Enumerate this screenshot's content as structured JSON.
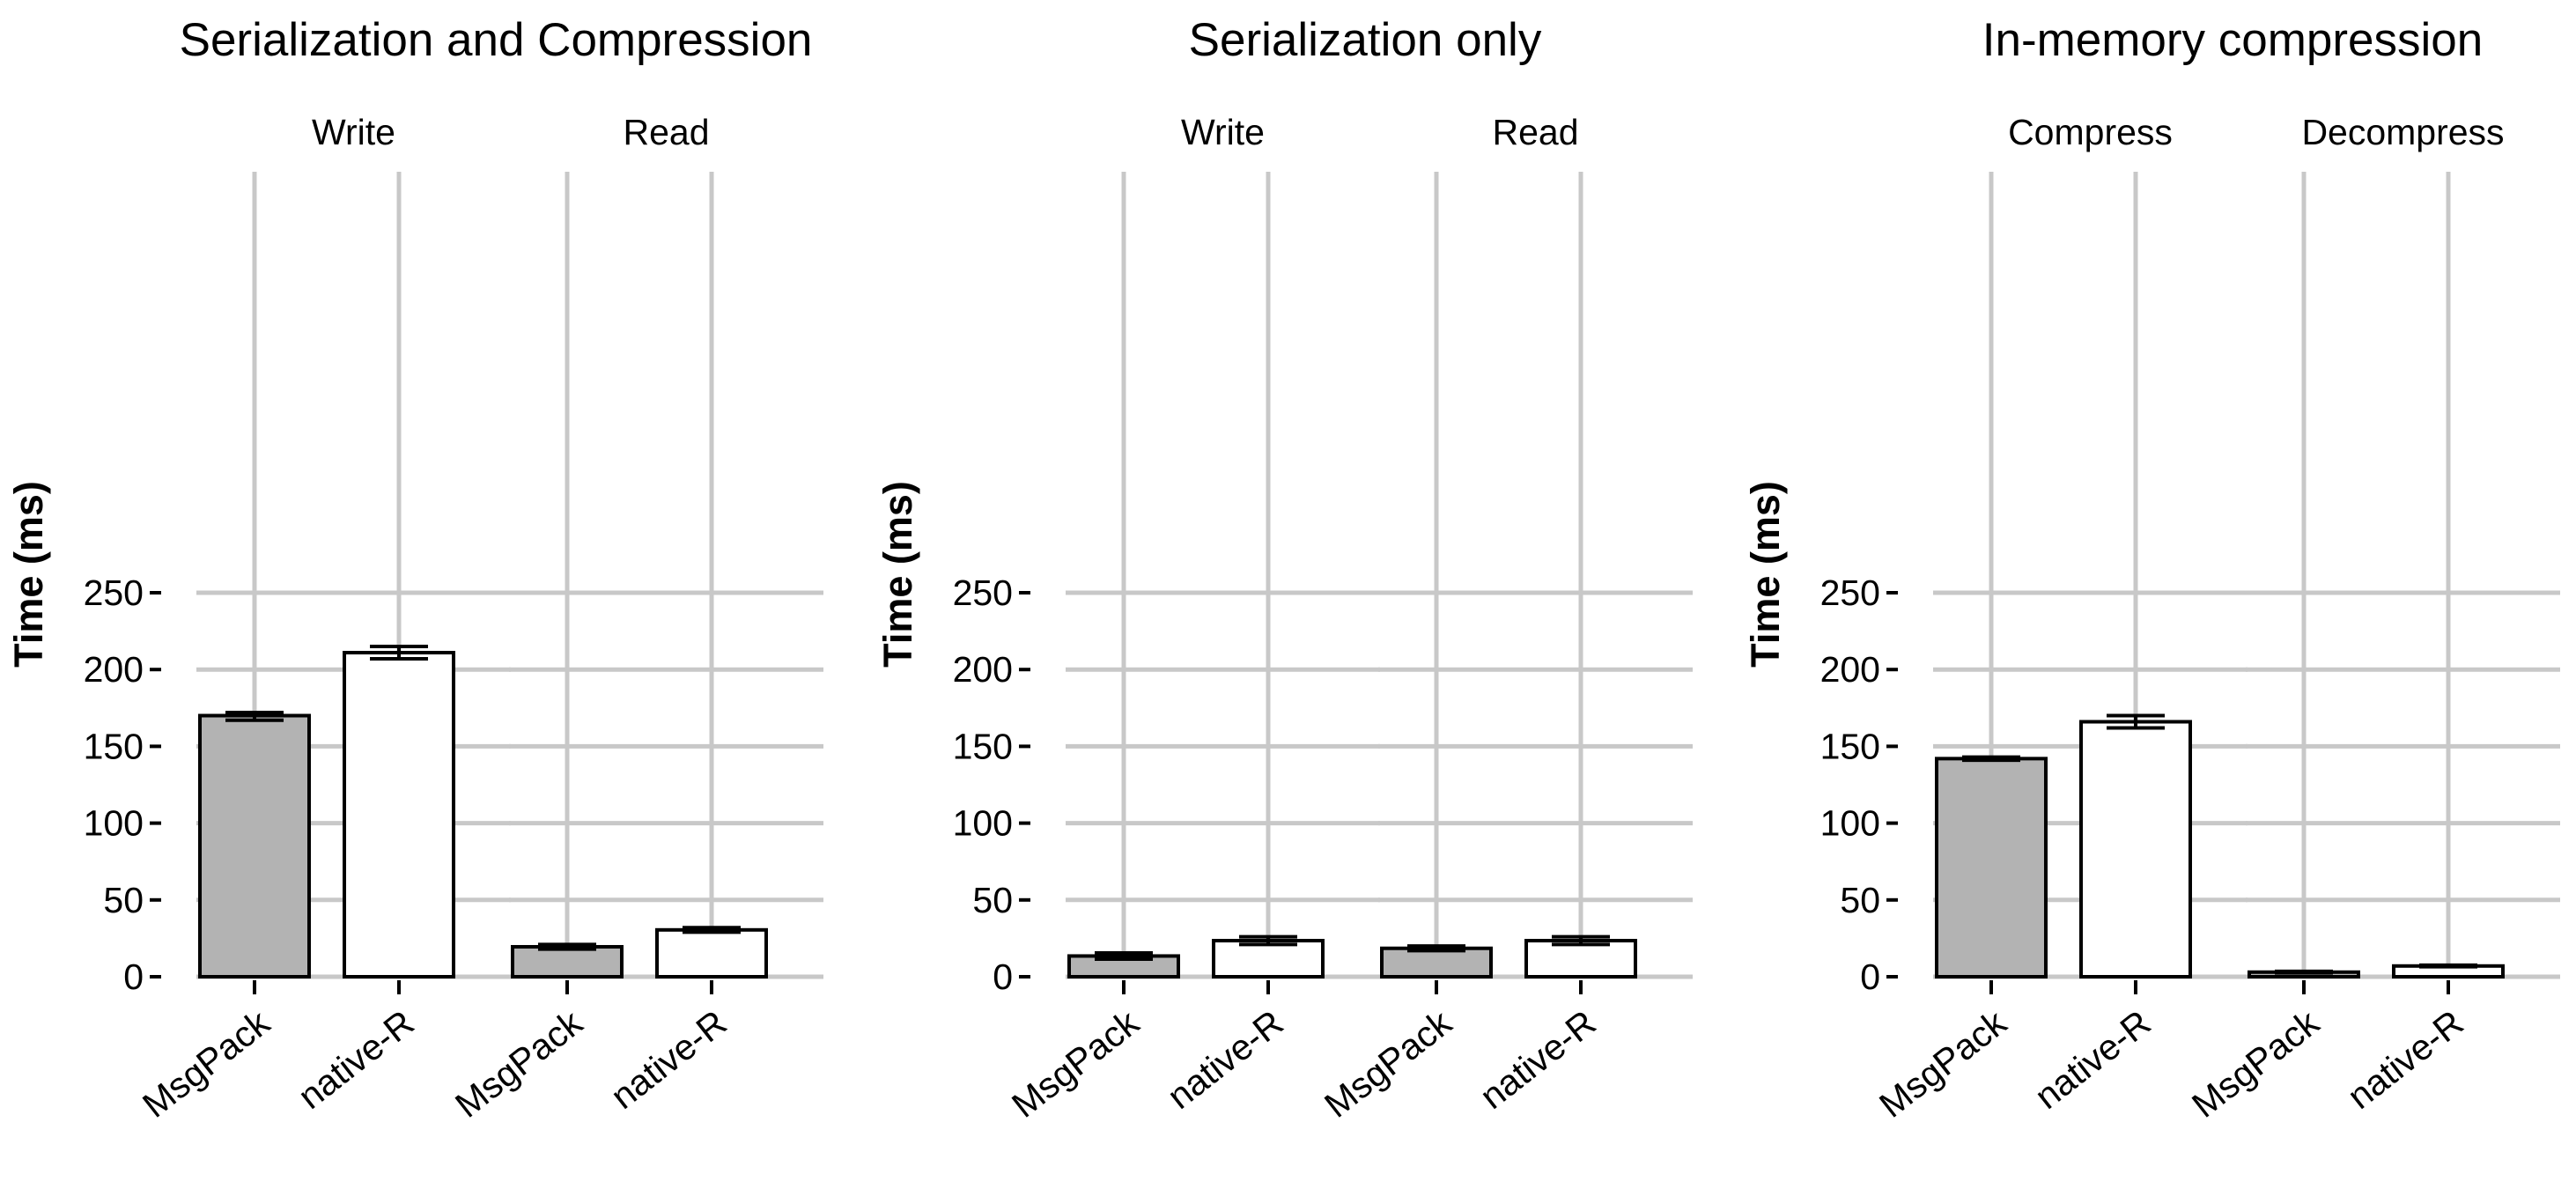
{
  "colors": {
    "MsgPack": "#b3b3b3",
    "native-R": "#ffffff",
    "grid": "#c8c8c8"
  },
  "chart_data": [
    {
      "type": "bar",
      "title": "Serialization and Compression",
      "ylabel": "Time (ms)",
      "ylim": [
        0,
        262
      ],
      "yticks": [
        0,
        50,
        100,
        150,
        200,
        250
      ],
      "categories": [
        "MsgPack",
        "native-R"
      ],
      "facets": [
        {
          "label": "Write",
          "values": [
            170,
            211
          ],
          "errors": [
            [
              167,
              172
            ],
            [
              207,
              215
            ]
          ]
        },
        {
          "label": "Read",
          "values": [
            19.5,
            30.5
          ],
          "errors": [
            [
              18,
              21
            ],
            [
              29,
              32
            ]
          ]
        }
      ]
    },
    {
      "type": "bar",
      "title": "Serialization only",
      "ylabel": "Time (ms)",
      "ylim": [
        0,
        262
      ],
      "yticks": [
        0,
        50,
        100,
        150,
        200,
        250
      ],
      "categories": [
        "MsgPack",
        "native-R"
      ],
      "facets": [
        {
          "label": "Write",
          "values": [
            13.5,
            23.5
          ],
          "errors": [
            [
              11.5,
              15.5
            ],
            [
              21,
              26
            ]
          ]
        },
        {
          "label": "Read",
          "values": [
            18.5,
            23.5
          ],
          "errors": [
            [
              17,
              20
            ],
            [
              21,
              26
            ]
          ]
        }
      ]
    },
    {
      "type": "bar",
      "title": "In-memory compression",
      "ylabel": "Time (ms)",
      "ylim": [
        0,
        262
      ],
      "yticks": [
        0,
        50,
        100,
        150,
        200,
        250
      ],
      "categories": [
        "MsgPack",
        "native-R"
      ],
      "facets": [
        {
          "label": "Compress",
          "values": [
            142,
            166
          ],
          "errors": [
            [
              141,
              143
            ],
            [
              162,
              170
            ]
          ]
        },
        {
          "label": "Decompress",
          "values": [
            3,
            7
          ],
          "errors": [
            [
              2.5,
              3.5
            ],
            [
              6.5,
              7.5
            ]
          ]
        }
      ]
    }
  ]
}
